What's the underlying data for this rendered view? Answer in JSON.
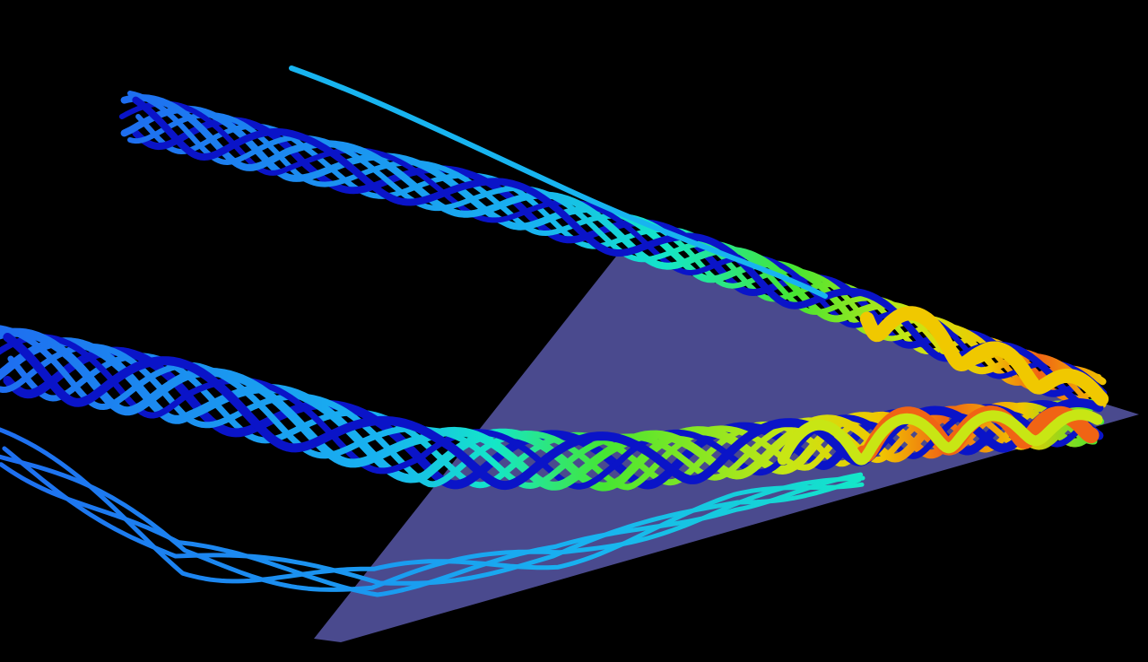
{
  "scene": {
    "background": "#000000",
    "plane_color": "#4a4a8e",
    "colormap": [
      "#0a14c8",
      "#1e6ef0",
      "#18b4f0",
      "#14e6c8",
      "#46e632",
      "#c8e614",
      "#f0c800",
      "#f06414",
      "#e63214"
    ],
    "vortex_count": 2,
    "streamlines_per_vortex": 8
  }
}
